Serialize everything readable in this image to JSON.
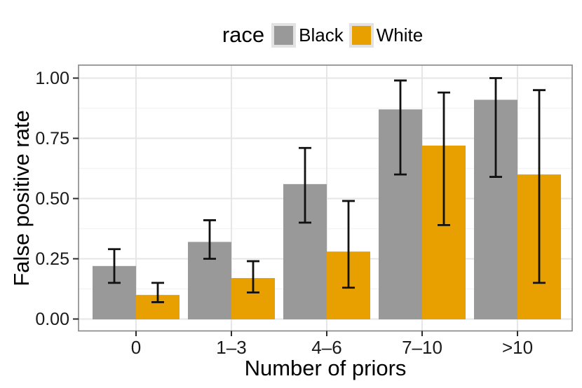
{
  "chart_data": {
    "type": "bar",
    "title": "",
    "xlabel": "Number of priors",
    "ylabel": "False positive rate",
    "categories": [
      "0",
      "1–3",
      "4–6",
      "7–10",
      ">10"
    ],
    "series": [
      {
        "name": "Black",
        "color": "#999999",
        "values": [
          0.22,
          0.32,
          0.56,
          0.87,
          0.91
        ],
        "ci_low": [
          0.15,
          0.25,
          0.4,
          0.6,
          0.59
        ],
        "ci_high": [
          0.29,
          0.41,
          0.71,
          0.99,
          1.0
        ]
      },
      {
        "name": "White",
        "color": "#E8A000",
        "values": [
          0.1,
          0.17,
          0.28,
          0.72,
          0.6
        ],
        "ci_low": [
          0.07,
          0.11,
          0.13,
          0.39,
          0.15
        ],
        "ci_high": [
          0.15,
          0.24,
          0.49,
          0.94,
          0.95
        ]
      }
    ],
    "legend": {
      "title": "race",
      "position": "top",
      "labels": [
        "Black",
        "White"
      ]
    },
    "ylim": [
      0,
      1
    ],
    "yticks": [
      "0.00",
      "0.25",
      "0.50",
      "0.75",
      "1.00"
    ],
    "ytick_values": [
      0,
      0.25,
      0.5,
      0.75,
      1.0
    ],
    "ytick_minor_values": [
      0.125,
      0.375,
      0.625,
      0.875
    ],
    "grid": true,
    "error_bars": true,
    "colors": {
      "grid_major": "#E6E6E6",
      "grid_minor": "#F4F4F4",
      "panel_border": "#858585",
      "tick": "#2b2b2b",
      "error_bar": "#111111",
      "legend_key_bg": "#E2E2E2",
      "background": "#ffffff"
    }
  }
}
